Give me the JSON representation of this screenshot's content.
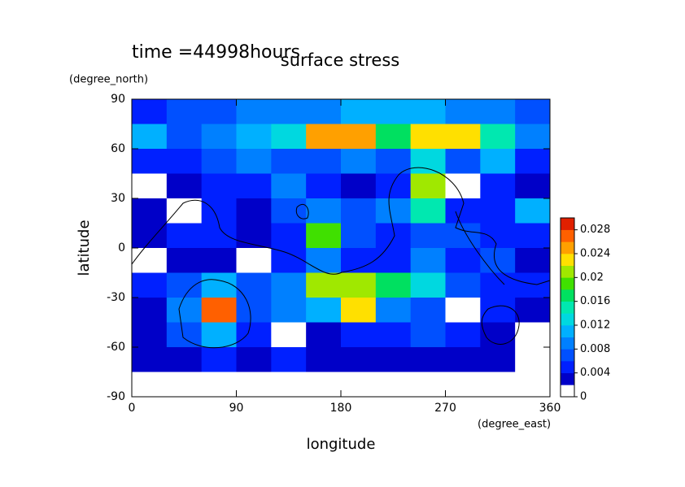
{
  "chart_data": {
    "type": "heatmap",
    "title": "surface stress",
    "subtitle": "time =44998hours",
    "xlabel": "longitude",
    "ylabel": "latitude",
    "xunit": "(degree_east)",
    "yunit": "(degree_north)",
    "xlim": [
      0,
      360
    ],
    "xticks": [
      0,
      90,
      180,
      270,
      360
    ],
    "ylim": [
      -90,
      90
    ],
    "yticks": [
      -90,
      -60,
      -30,
      0,
      30,
      60,
      90
    ],
    "x": [
      15,
      45,
      75,
      105,
      135,
      165,
      195,
      225,
      255,
      285,
      315,
      345
    ],
    "y": [
      82.5,
      67.5,
      52.5,
      37.5,
      22.5,
      7.5,
      -7.5,
      -22.5,
      -37.5,
      -52.5,
      -67.5,
      -82.5
    ],
    "z": [
      [
        0.004,
        0.006,
        0.007,
        0.008,
        0.008,
        0.009,
        0.01,
        0.01,
        0.01,
        0.009,
        0.008,
        0.006
      ],
      [
        0.01,
        0.006,
        0.008,
        0.01,
        0.012,
        0.024,
        0.024,
        0.016,
        0.022,
        0.022,
        0.014,
        0.008
      ],
      [
        0.004,
        0.004,
        0.006,
        0.008,
        0.006,
        0.006,
        0.008,
        0.006,
        0.012,
        0.006,
        0.01,
        0.004
      ],
      [
        0.001,
        0.003,
        0.004,
        0.004,
        0.008,
        0.004,
        0.003,
        0.004,
        0.02,
        0.001,
        0.004,
        0.003
      ],
      [
        0.003,
        0.001,
        0.004,
        0.003,
        0.006,
        0.008,
        0.006,
        0.008,
        0.014,
        0.004,
        0.005,
        0.01
      ],
      [
        0.003,
        0.004,
        0.004,
        0.003,
        0.004,
        0.018,
        0.006,
        0.004,
        0.006,
        0.006,
        0.004,
        0.004
      ],
      [
        0.001,
        0.003,
        0.003,
        0.001,
        0.004,
        0.008,
        0.005,
        0.004,
        0.008,
        0.004,
        0.006,
        0.003
      ],
      [
        0.004,
        0.006,
        0.01,
        0.006,
        0.008,
        0.02,
        0.02,
        0.016,
        0.012,
        0.006,
        0.004,
        0.004
      ],
      [
        0.002,
        0.008,
        0.026,
        0.006,
        0.008,
        0.01,
        0.022,
        0.008,
        0.006,
        0.001,
        0.004,
        0.003
      ],
      [
        0.003,
        0.006,
        0.01,
        0.004,
        0.001,
        0.003,
        0.004,
        0.004,
        0.006,
        0.004,
        0.003,
        0.001
      ],
      [
        0.002,
        0.003,
        0.004,
        0.003,
        0.004,
        0.003,
        0.003,
        0.003,
        0.003,
        0.003,
        0.002,
        0.001
      ],
      [
        0,
        0,
        0,
        0,
        0,
        0,
        0,
        0,
        0,
        0,
        0,
        0
      ]
    ],
    "clim": [
      0,
      0.03
    ],
    "cticks": [
      0,
      0.004,
      0.008,
      0.012,
      0.016,
      0.02,
      0.024,
      0.028
    ],
    "colors": [
      "#ffffff",
      "#0000c8",
      "#0020ff",
      "#0050ff",
      "#0080ff",
      "#00b0ff",
      "#00d8e0",
      "#00e8b0",
      "#00e060",
      "#40e000",
      "#a0e800",
      "#ffe000",
      "#ffa000",
      "#ff6000",
      "#e02000"
    ]
  }
}
